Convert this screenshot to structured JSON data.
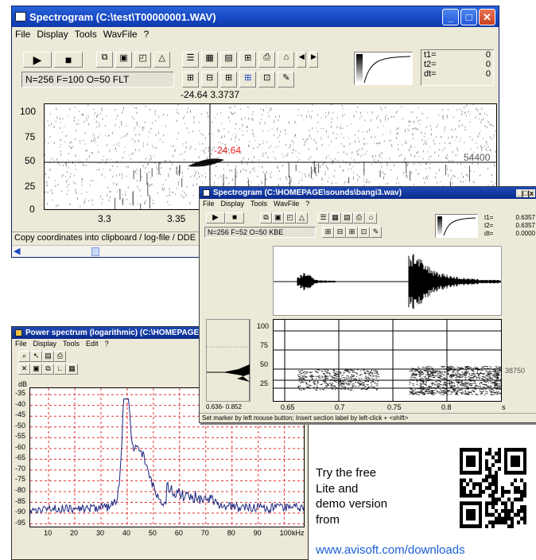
{
  "main_window": {
    "title": "Spectrogram (C:\\test\\T00000001.WAV)",
    "menu": [
      "File",
      "Display",
      "Tools",
      "WavFile",
      "?"
    ],
    "params": "N=256 F=100 O=50 FLT",
    "readout_top": "-24.64  3.3737",
    "cursor_value": "-24.64",
    "freq_label": "54400",
    "y_ticks": [
      "100",
      "75",
      "50",
      "25",
      "0"
    ],
    "x_ticks": [
      "3.3",
      "3.35"
    ],
    "time": {
      "t1_label": "t1=",
      "t1_value": "0",
      "t2_label": "t2=",
      "t2_value": "0",
      "dt_label": "dt=",
      "dt_value": "0"
    },
    "status": "Copy coordinates into clipboard / log-file / DDE"
  },
  "second_window": {
    "title": "Spectrogram (C:\\HOMEPAGE\\sounds\\bangi3.wav)",
    "menu": [
      "File",
      "Display",
      "Tools",
      "WavFile",
      "?"
    ],
    "params": "N=256 F=52 O=50 KBE",
    "time": {
      "t1_label": "t1=",
      "t1_value": "0.6357",
      "t2_label": "t2=",
      "t2_value": "0.6357",
      "dt_label": "dt=",
      "dt_value": "0.0000"
    },
    "y_ticks": [
      "100",
      "75",
      "50",
      "25"
    ],
    "x_ticks": [
      "0.65",
      "0.7",
      "0.75",
      "0.8"
    ],
    "x_unit": "s",
    "freq_label": "38750",
    "range_label": "0.636- 0.852",
    "status": "Set marker by left mouse button; Insert section label by left-click + <shift>"
  },
  "power_window": {
    "title": "Power spectrum (logarithmic) (C:\\HOMEPAGE\\soun",
    "menu": [
      "File",
      "Display",
      "Tools",
      "Edit",
      "?"
    ],
    "y_unit": "dB",
    "y_ticks": [
      "-35",
      "-40",
      "-45",
      "-50",
      "-55",
      "-60",
      "-65",
      "-70",
      "-75",
      "-80",
      "-85",
      "-90",
      "-95"
    ],
    "x_ticks": [
      "10",
      "20",
      "30",
      "40",
      "50",
      "60",
      "70",
      "80",
      "90",
      "100"
    ],
    "x_unit": "kHz"
  },
  "promo": {
    "line1": "Try the free",
    "line2": "Lite and",
    "line3": "demo version",
    "line4": "from",
    "link": "www.avisoft.com/downloads"
  },
  "colors": {
    "title_blue": "#1547c2",
    "link": "#1a5fd8",
    "grid_red": "#e03030",
    "spectrum": "#1a237e",
    "cursor_red": "#e02020"
  }
}
